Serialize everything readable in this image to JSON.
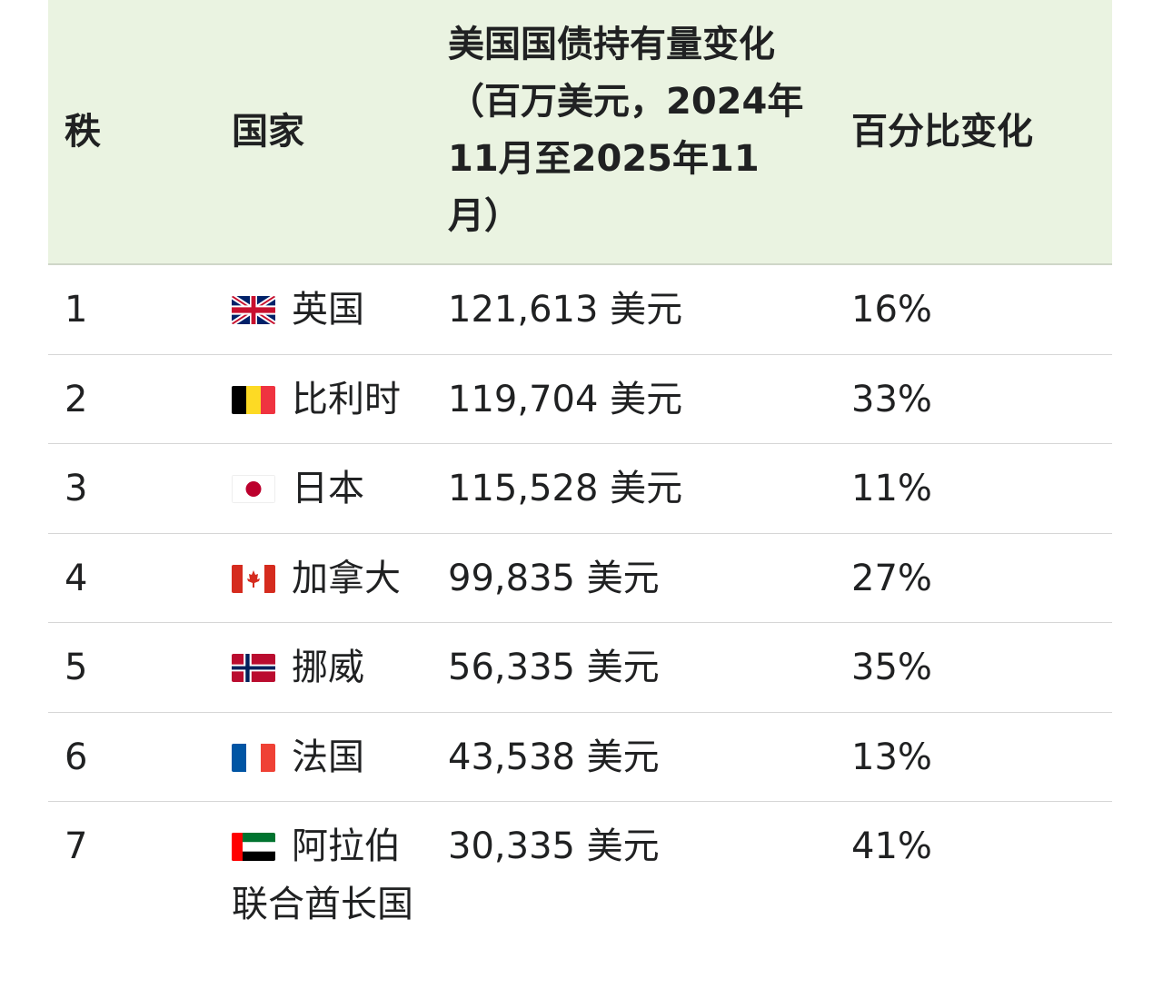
{
  "header": {
    "rank": "秩",
    "country": "国家",
    "change": "美国国债持有量变化（百万美元，2024年11月至2025年11月）",
    "percent": "百分比变化"
  },
  "rows": [
    {
      "rank": "1",
      "flag": "uk-flag-icon",
      "country": "英国",
      "value": "121,613 美元",
      "percent": "16%"
    },
    {
      "rank": "2",
      "flag": "belgium-flag-icon",
      "country": "比利时",
      "value": "119,704 美元",
      "percent": "33%"
    },
    {
      "rank": "3",
      "flag": "japan-flag-icon",
      "country": "日本",
      "value": "115,528 美元",
      "percent": "11%"
    },
    {
      "rank": "4",
      "flag": "canada-flag-icon",
      "country": "加拿大",
      "value": "99,835 美元",
      "percent": "27%"
    },
    {
      "rank": "5",
      "flag": "norway-flag-icon",
      "country": "挪威",
      "value": "56,335 美元",
      "percent": "35%"
    },
    {
      "rank": "6",
      "flag": "france-flag-icon",
      "country": "法国",
      "value": "43,538 美元",
      "percent": "13%"
    },
    {
      "rank": "7",
      "flag": "uae-flag-icon",
      "country": "阿拉伯联合酋长国",
      "value": "30,335 美元",
      "percent": "41%"
    }
  ],
  "colors": {
    "header_bg": "#eaf3e1",
    "divider": "#d6d6d6",
    "text": "#202122"
  }
}
